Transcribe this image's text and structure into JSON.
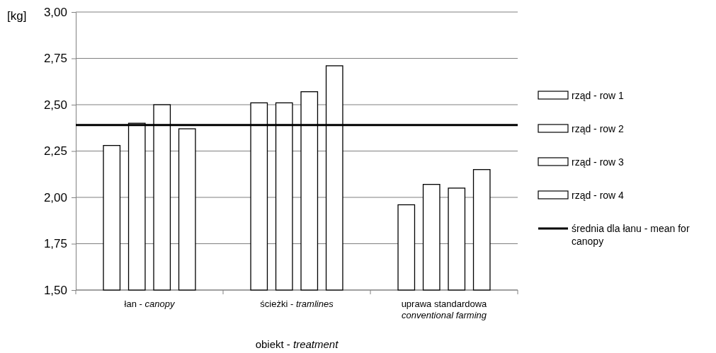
{
  "chart_data": {
    "type": "bar",
    "xlabel": "obiekt - treatment",
    "ylabel": "[kg]",
    "categories": [
      "łan - canopy",
      "ścieżki - tramlines",
      "uprawa standardowa\nconventional farming"
    ],
    "series": [
      {
        "name": "rząd - row 1",
        "color": "#ffffff",
        "values": [
          2.28,
          2.51,
          1.96
        ]
      },
      {
        "name": "rząd - row 2",
        "color": "#ffffff",
        "values": [
          2.4,
          2.51,
          2.07
        ]
      },
      {
        "name": "rząd - row 3",
        "color": "#ffffff",
        "values": [
          2.5,
          2.57,
          2.05
        ]
      },
      {
        "name": "rząd - row 4",
        "color": "#ffffff",
        "values": [
          2.37,
          2.71,
          2.15
        ]
      }
    ],
    "ref_lines": [
      {
        "axis": "y",
        "value": 2.39,
        "label": "średnia dla łanu - mean for canopy",
        "color": "#000000",
        "line_style": "solid"
      }
    ],
    "ylim": [
      1.5,
      3.0
    ],
    "yticks": [
      {
        "value": 1.5,
        "label": "1,50"
      },
      {
        "value": 1.75,
        "label": "1,75"
      },
      {
        "value": 2.0,
        "label": "2,00"
      },
      {
        "value": 2.25,
        "label": "2,25"
      },
      {
        "value": 2.5,
        "label": "2,50"
      },
      {
        "value": 2.75,
        "label": "2,75"
      },
      {
        "value": 3.0,
        "label": "3,00"
      }
    ],
    "grid": "y",
    "legend": "right"
  }
}
